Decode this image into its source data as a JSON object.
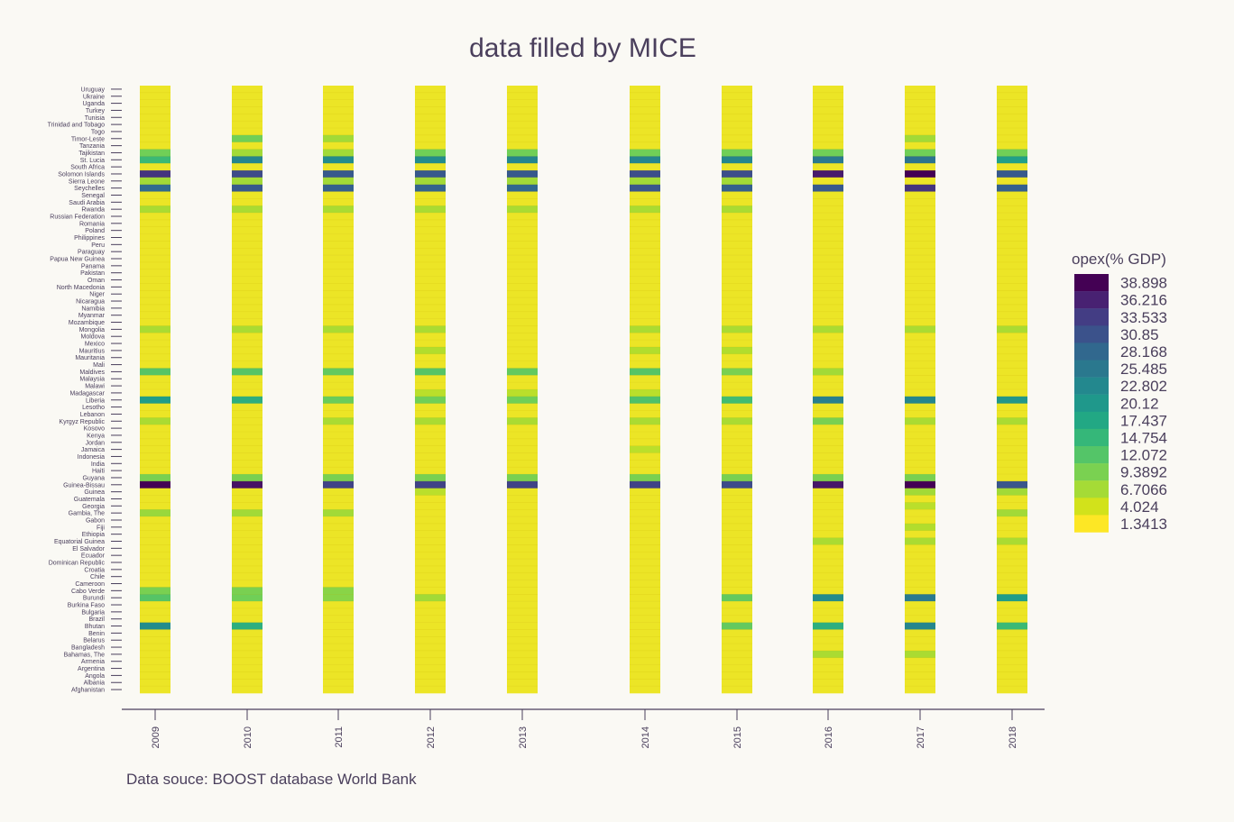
{
  "colors": {
    "background": "#faf9f4",
    "text": "#4a3f5c",
    "axis": "#4a3f5c"
  },
  "source_note": "Data souce: BOOST database World Bank",
  "chart_data": {
    "type": "heatmap",
    "title": "data filled by MICE",
    "xlabel": "",
    "ylabel": "",
    "x": [
      "2009",
      "2010",
      "2011",
      "2012",
      "2013",
      "2014",
      "2015",
      "2016",
      "2017",
      "2018"
    ],
    "y": [
      "Uruguay",
      "Ukraine",
      "Uganda",
      "Turkey",
      "Tunisia",
      "Trinidad and Tobago",
      "Togo",
      "Timor-Leste",
      "Tanzania",
      "Tajikistan",
      "St. Lucia",
      "South Africa",
      "Solomon Islands",
      "Sierra Leone",
      "Seychelles",
      "Senegal",
      "Saudi Arabia",
      "Rwanda",
      "Russian Federation",
      "Romania",
      "Poland",
      "Philippines",
      "Peru",
      "Paraguay",
      "Papua New Guinea",
      "Panama",
      "Pakistan",
      "Oman",
      "North Macedonia",
      "Niger",
      "Nicaragua",
      "Namibia",
      "Myanmar",
      "Mozambique",
      "Mongolia",
      "Moldova",
      "Mexico",
      "Mauritius",
      "Mauritania",
      "Mali",
      "Maldives",
      "Malaysia",
      "Malawi",
      "Madagascar",
      "Liberia",
      "Lesotho",
      "Lebanon",
      "Kyrgyz Republic",
      "Kosovo",
      "Kenya",
      "Jordan",
      "Jamaica",
      "Indonesia",
      "India",
      "Haiti",
      "Guyana",
      "Guinea-Bissau",
      "Guinea",
      "Guatemala",
      "Georgia",
      "Gambia, The",
      "Gabon",
      "Fiji",
      "Ethiopia",
      "Equatorial Guinea",
      "El Salvador",
      "Ecuador",
      "Dominican Republic",
      "Croatia",
      "Chile",
      "Cameroon",
      "Cabo Verde",
      "Burundi",
      "Burkina Faso",
      "Bulgaria",
      "Brazil",
      "Bhutan",
      "Benin",
      "Belarus",
      "Bangladesh",
      "Bahamas, The",
      "Armenia",
      "Argentina",
      "Angola",
      "Albania",
      "Afghanistan"
    ],
    "default_value": 1.0,
    "values": {
      "Timor-Leste": [
        1.0,
        8.5,
        5.5,
        1.0,
        1.0,
        1.0,
        1.0,
        1.0,
        5.5,
        1.0
      ],
      "Tajikistan": [
        8.5,
        5.5,
        5.5,
        8.5,
        8.5,
        8.5,
        8.5,
        8.5,
        8.5,
        8.5
      ],
      "St. Lucia": [
        12.5,
        21.0,
        20.0,
        20.0,
        21.0,
        21.0,
        21.0,
        23.0,
        24.0,
        17.0
      ],
      "Solomon Islands": [
        33.0,
        30.0,
        28.0,
        28.0,
        28.0,
        29.5,
        29.5,
        36.0,
        39.0,
        28.0
      ],
      "Sierra Leone": [
        5.5,
        5.5,
        5.5,
        5.5,
        5.5,
        5.5,
        5.5,
        1.0,
        1.0,
        1.0
      ],
      "Seychelles": [
        25.5,
        28.0,
        27.0,
        26.5,
        26.0,
        28.5,
        27.0,
        28.0,
        33.0,
        27.0
      ],
      "Rwanda": [
        5.0,
        5.0,
        5.0,
        5.0,
        5.0,
        5.0,
        5.0,
        1.0,
        1.0,
        1.0
      ],
      "Mongolia": [
        5.0,
        5.0,
        5.0,
        5.0,
        1.0,
        5.0,
        5.0,
        5.0,
        5.0,
        5.0
      ],
      "Mauritius": [
        1.0,
        1.0,
        1.0,
        4.5,
        1.0,
        4.5,
        4.5,
        1.0,
        1.0,
        1.0
      ],
      "Maldives": [
        10.5,
        10.5,
        9.5,
        10.5,
        9.5,
        10.5,
        8.0,
        5.5,
        1.0,
        1.0
      ],
      "Madagascar": [
        1.0,
        1.0,
        1.0,
        4.0,
        4.0,
        4.0,
        1.0,
        1.0,
        1.0,
        1.0
      ],
      "Liberia": [
        17.5,
        14.5,
        9.0,
        8.5,
        8.5,
        11.0,
        12.0,
        22.0,
        21.0,
        18.5
      ],
      "Kyrgyz Republic": [
        5.0,
        1.0,
        5.0,
        5.0,
        5.0,
        5.0,
        5.0,
        8.0,
        5.0,
        5.0
      ],
      "Jamaica": [
        1.0,
        1.0,
        1.0,
        1.0,
        1.0,
        4.0,
        1.0,
        1.0,
        1.0,
        1.0
      ],
      "Guyana": [
        8.0,
        8.0,
        8.0,
        8.0,
        8.0,
        8.0,
        8.0,
        8.0,
        8.0,
        1.0
      ],
      "Guinea-Bissau": [
        38.9,
        37.0,
        31.0,
        31.0,
        31.0,
        31.0,
        30.0,
        36.5,
        38.9,
        28.5
      ],
      "Guinea": [
        1.0,
        1.0,
        1.0,
        4.0,
        1.0,
        1.0,
        1.0,
        1.0,
        5.5,
        5.5
      ],
      "Georgia": [
        1.0,
        1.0,
        1.0,
        1.0,
        1.0,
        1.0,
        1.0,
        1.0,
        4.0,
        1.0
      ],
      "Gambia, The": [
        6.0,
        5.5,
        5.5,
        1.0,
        1.0,
        1.0,
        1.0,
        1.0,
        1.0,
        5.5
      ],
      "Fiji": [
        1.0,
        1.0,
        1.0,
        1.0,
        1.0,
        1.0,
        1.0,
        1.0,
        4.5,
        1.0
      ],
      "Equatorial Guinea": [
        1.0,
        1.0,
        1.0,
        1.0,
        1.0,
        1.0,
        1.0,
        5.0,
        5.0,
        5.0
      ],
      "Cabo Verde": [
        8.0,
        8.0,
        7.0,
        1.0,
        1.0,
        1.0,
        1.0,
        1.0,
        1.0,
        1.0
      ],
      "Burundi": [
        10.5,
        8.5,
        7.0,
        5.5,
        1.0,
        1.0,
        9.5,
        20.0,
        23.0,
        17.5
      ],
      "Bhutan": [
        20.0,
        14.5,
        1.0,
        1.0,
        1.0,
        1.0,
        9.5,
        14.5,
        21.0,
        12.5
      ],
      "Bahamas, The": [
        1.0,
        1.0,
        1.0,
        1.0,
        1.0,
        1.0,
        1.0,
        5.0,
        5.0,
        1.0
      ]
    },
    "colorbar": {
      "title": "opex(% GDP)",
      "ticks": [
        "38.898",
        "36.216",
        "33.533",
        "30.85",
        "28.168",
        "25.485",
        "22.802",
        "20.12",
        "17.437",
        "14.754",
        "12.072",
        "9.3892",
        "6.7066",
        "4.024",
        "1.3413"
      ],
      "colors": [
        "#440154",
        "#482172",
        "#433d84",
        "#3b528b",
        "#31688e",
        "#2a788e",
        "#23888e",
        "#1f988b",
        "#22a884",
        "#35b779",
        "#54c568",
        "#7ad151",
        "#a5db36",
        "#d2e21b",
        "#fde725"
      ],
      "min": 0.0,
      "max": 38.898
    }
  }
}
